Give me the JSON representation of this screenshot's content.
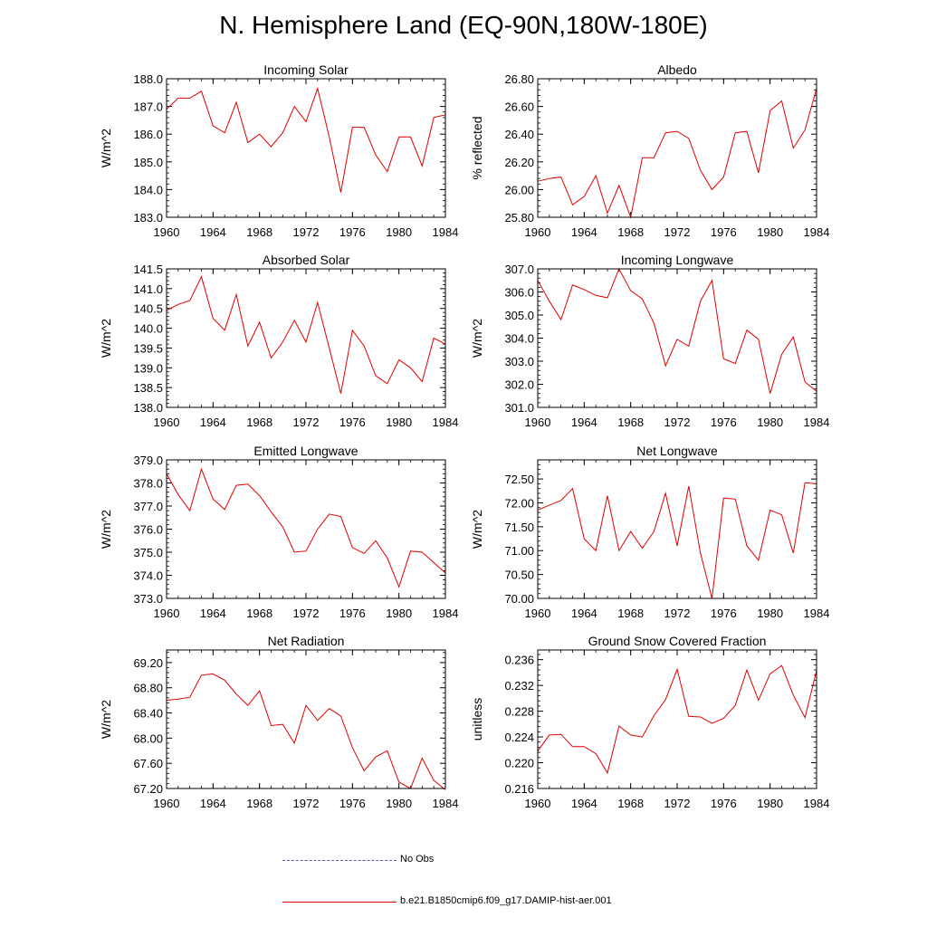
{
  "figure": {
    "title": "N. Hemisphere Land (EQ-90N,180W-180E)"
  },
  "legend": {
    "obs_label": "No Obs",
    "model_label": "b.e21.B1850cmip6.f09_g17.DAMIP-hist-aer.001",
    "obs_color": "#5555cc",
    "model_color": "#e00000"
  },
  "chart_data": [
    {
      "type": "line",
      "title": "Incoming Solar",
      "xlabel": "",
      "ylabel": "W/m^2",
      "xlim": [
        1960,
        1984
      ],
      "ylim": [
        183.0,
        188.0
      ],
      "xticks": [
        "1960",
        "1964",
        "1968",
        "1972",
        "1976",
        "1980",
        "1984"
      ],
      "yticks": [
        "183.0",
        "184.0",
        "185.0",
        "186.0",
        "187.0",
        "188.0"
      ],
      "x": [
        1960,
        1961,
        1962,
        1963,
        1964,
        1965,
        1966,
        1967,
        1968,
        1969,
        1970,
        1971,
        1972,
        1973,
        1974,
        1975,
        1976,
        1977,
        1978,
        1979,
        1980,
        1981,
        1982,
        1983,
        1984
      ],
      "series": [
        {
          "name": "b.e21.B1850cmip6.f09_g17.DAMIP-hist-aer.001",
          "color": "#e00000",
          "values": [
            186.9,
            187.3,
            187.3,
            187.55,
            186.3,
            186.05,
            187.15,
            185.7,
            186.0,
            185.55,
            186.05,
            187.0,
            186.45,
            187.65,
            185.9,
            183.9,
            186.25,
            186.25,
            185.25,
            184.65,
            185.9,
            185.9,
            184.85,
            186.6,
            186.7
          ]
        }
      ]
    },
    {
      "type": "line",
      "title": "Albedo",
      "xlabel": "",
      "ylabel": "% reflected",
      "xlim": [
        1960,
        1984
      ],
      "ylim": [
        25.8,
        26.8
      ],
      "xticks": [
        "1960",
        "1964",
        "1968",
        "1972",
        "1976",
        "1980",
        "1984"
      ],
      "yticks": [
        "25.80",
        "26.00",
        "26.20",
        "26.40",
        "26.60",
        "26.80"
      ],
      "x": [
        1960,
        1961,
        1962,
        1963,
        1964,
        1965,
        1966,
        1967,
        1968,
        1969,
        1970,
        1971,
        1972,
        1973,
        1974,
        1975,
        1976,
        1977,
        1978,
        1979,
        1980,
        1981,
        1982,
        1983,
        1984
      ],
      "series": [
        {
          "name": "b.e21.B1850cmip6.f09_g17.DAMIP-hist-aer.001",
          "color": "#e00000",
          "values": [
            26.06,
            26.08,
            26.09,
            25.89,
            25.95,
            26.1,
            25.83,
            26.03,
            25.8,
            26.23,
            26.23,
            26.41,
            26.42,
            26.37,
            26.14,
            26.0,
            26.09,
            26.41,
            26.42,
            26.12,
            26.57,
            26.64,
            26.3,
            26.43,
            26.73
          ]
        }
      ]
    },
    {
      "type": "line",
      "title": "Absorbed Solar",
      "xlabel": "",
      "ylabel": "W/m^2",
      "xlim": [
        1960,
        1984
      ],
      "ylim": [
        138.0,
        141.5
      ],
      "xticks": [
        "1960",
        "1964",
        "1968",
        "1972",
        "1976",
        "1980",
        "1984"
      ],
      "yticks": [
        "138.0",
        "138.5",
        "139.0",
        "139.5",
        "140.0",
        "140.5",
        "141.0",
        "141.5"
      ],
      "x": [
        1960,
        1961,
        1962,
        1963,
        1964,
        1965,
        1966,
        1967,
        1968,
        1969,
        1970,
        1971,
        1972,
        1973,
        1974,
        1975,
        1976,
        1977,
        1978,
        1979,
        1980,
        1981,
        1982,
        1983,
        1984
      ],
      "series": [
        {
          "name": "b.e21.B1850cmip6.f09_g17.DAMIP-hist-aer.001",
          "color": "#e00000",
          "values": [
            140.45,
            140.6,
            140.7,
            141.3,
            140.25,
            139.95,
            140.85,
            139.55,
            140.15,
            139.25,
            139.65,
            140.2,
            139.65,
            140.65,
            139.5,
            138.35,
            139.95,
            139.55,
            138.8,
            138.6,
            139.2,
            139.0,
            138.65,
            139.75,
            139.6
          ]
        }
      ]
    },
    {
      "type": "line",
      "title": "Incoming Longwave",
      "xlabel": "",
      "ylabel": "W/m^2",
      "xlim": [
        1960,
        1984
      ],
      "ylim": [
        301.0,
        307.0
      ],
      "xticks": [
        "1960",
        "1964",
        "1968",
        "1972",
        "1976",
        "1980",
        "1984"
      ],
      "yticks": [
        "301.0",
        "302.0",
        "303.0",
        "304.0",
        "305.0",
        "306.0",
        "307.0"
      ],
      "x": [
        1960,
        1961,
        1962,
        1963,
        1964,
        1965,
        1966,
        1967,
        1968,
        1969,
        1970,
        1971,
        1972,
        1973,
        1974,
        1975,
        1976,
        1977,
        1978,
        1979,
        1980,
        1981,
        1982,
        1983,
        1984
      ],
      "series": [
        {
          "name": "b.e21.B1850cmip6.f09_g17.DAMIP-hist-aer.001",
          "color": "#e00000",
          "values": [
            306.5,
            305.6,
            304.8,
            306.3,
            306.1,
            305.85,
            305.75,
            307.0,
            306.05,
            305.7,
            304.65,
            302.8,
            303.95,
            303.65,
            305.6,
            306.5,
            303.1,
            302.9,
            304.35,
            303.95,
            301.6,
            303.3,
            304.05,
            302.1,
            301.7
          ]
        }
      ]
    },
    {
      "type": "line",
      "title": "Emitted Longwave",
      "xlabel": "",
      "ylabel": "W/m^2",
      "xlim": [
        1960,
        1984
      ],
      "ylim": [
        373.0,
        379.0
      ],
      "xticks": [
        "1960",
        "1964",
        "1968",
        "1972",
        "1976",
        "1980",
        "1984"
      ],
      "yticks": [
        "373.0",
        "374.0",
        "375.0",
        "376.0",
        "377.0",
        "378.0",
        "379.0"
      ],
      "x": [
        1960,
        1961,
        1962,
        1963,
        1964,
        1965,
        1966,
        1967,
        1968,
        1969,
        1970,
        1971,
        1972,
        1973,
        1974,
        1975,
        1976,
        1977,
        1978,
        1979,
        1980,
        1981,
        1982,
        1983,
        1984
      ],
      "series": [
        {
          "name": "b.e21.B1850cmip6.f09_g17.DAMIP-hist-aer.001",
          "color": "#e00000",
          "values": [
            378.4,
            377.5,
            376.8,
            378.6,
            377.3,
            376.85,
            377.9,
            377.95,
            377.45,
            376.75,
            376.1,
            375.0,
            375.05,
            376.0,
            376.65,
            376.55,
            375.2,
            374.95,
            375.5,
            374.75,
            373.5,
            375.05,
            375.0,
            374.55,
            374.1
          ]
        }
      ]
    },
    {
      "type": "line",
      "title": "Net Longwave",
      "xlabel": "",
      "ylabel": "W/m^2",
      "xlim": [
        1960,
        1984
      ],
      "ylim": [
        70.0,
        72.9
      ],
      "xticks": [
        "1960",
        "1964",
        "1968",
        "1972",
        "1976",
        "1980",
        "1984"
      ],
      "yticks": [
        "70.00",
        "70.50",
        "71.00",
        "71.50",
        "72.00",
        "72.50"
      ],
      "x": [
        1960,
        1961,
        1962,
        1963,
        1964,
        1965,
        1966,
        1967,
        1968,
        1969,
        1970,
        1971,
        1972,
        1973,
        1974,
        1975,
        1976,
        1977,
        1978,
        1979,
        1980,
        1981,
        1982,
        1983,
        1984
      ],
      "series": [
        {
          "name": "b.e21.B1850cmip6.f09_g17.DAMIP-hist-aer.001",
          "color": "#e00000",
          "values": [
            71.85,
            71.95,
            72.05,
            72.3,
            71.25,
            71.0,
            72.15,
            71.0,
            71.4,
            71.05,
            71.4,
            72.2,
            71.1,
            72.35,
            70.95,
            70.0,
            72.1,
            72.08,
            71.1,
            70.8,
            71.85,
            71.75,
            70.95,
            72.42,
            72.4
          ]
        }
      ]
    },
    {
      "type": "line",
      "title": "Net Radiation",
      "xlabel": "",
      "ylabel": "W/m^2",
      "xlim": [
        1960,
        1984
      ],
      "ylim": [
        67.2,
        69.4
      ],
      "xticks": [
        "1960",
        "1964",
        "1968",
        "1972",
        "1976",
        "1980",
        "1984"
      ],
      "yticks": [
        "67.20",
        "67.60",
        "68.00",
        "68.40",
        "68.80",
        "69.20"
      ],
      "x": [
        1960,
        1961,
        1962,
        1963,
        1964,
        1965,
        1966,
        1967,
        1968,
        1969,
        1970,
        1971,
        1972,
        1973,
        1974,
        1975,
        1976,
        1977,
        1978,
        1979,
        1980,
        1981,
        1982,
        1983,
        1984
      ],
      "series": [
        {
          "name": "b.e21.B1850cmip6.f09_g17.DAMIP-hist-aer.001",
          "color": "#e00000",
          "values": [
            68.6,
            68.62,
            68.65,
            69.0,
            69.02,
            68.92,
            68.7,
            68.52,
            68.75,
            68.2,
            68.22,
            67.92,
            68.52,
            68.28,
            68.47,
            68.35,
            67.85,
            67.48,
            67.7,
            67.8,
            67.3,
            67.2,
            67.68,
            67.33,
            67.18
          ]
        }
      ]
    },
    {
      "type": "line",
      "title": "Ground Snow Covered Fraction",
      "xlabel": "",
      "ylabel": "unitless",
      "xlim": [
        1960,
        1984
      ],
      "ylim": [
        0.216,
        0.2375
      ],
      "xticks": [
        "1960",
        "1964",
        "1968",
        "1972",
        "1976",
        "1980",
        "1984"
      ],
      "yticks": [
        "0.216",
        "0.220",
        "0.224",
        "0.228",
        "0.232",
        "0.236"
      ],
      "x": [
        1960,
        1961,
        1962,
        1963,
        1964,
        1965,
        1966,
        1967,
        1968,
        1969,
        1970,
        1971,
        1972,
        1973,
        1974,
        1975,
        1976,
        1977,
        1978,
        1979,
        1980,
        1981,
        1982,
        1983,
        1984
      ],
      "series": [
        {
          "name": "b.e21.B1850cmip6.f09_g17.DAMIP-hist-aer.001",
          "color": "#e00000",
          "values": [
            0.2218,
            0.2243,
            0.2244,
            0.2225,
            0.2225,
            0.2214,
            0.2184,
            0.2257,
            0.2243,
            0.224,
            0.2273,
            0.2298,
            0.2345,
            0.2272,
            0.2271,
            0.2261,
            0.2269,
            0.2289,
            0.2344,
            0.2297,
            0.2338,
            0.2351,
            0.2305,
            0.227,
            0.2343
          ]
        }
      ]
    }
  ]
}
